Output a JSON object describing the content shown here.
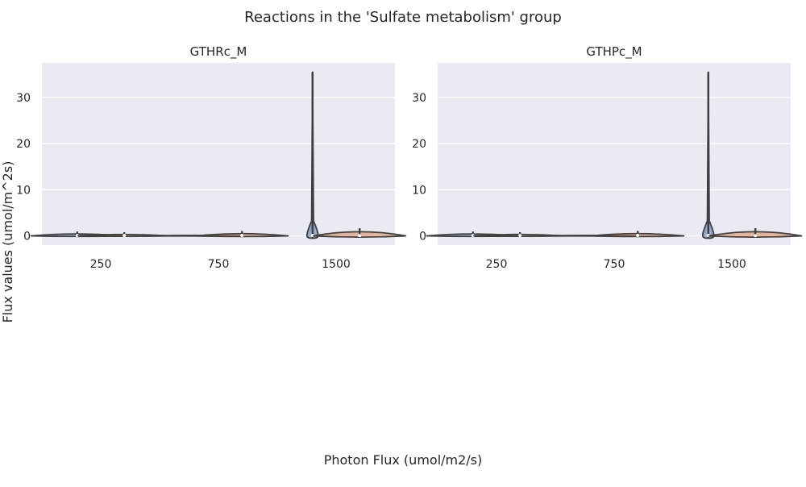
{
  "figure": {
    "title": "Reactions in the 'Sulfate metabolism' group",
    "xlabel": "Photon Flux (umol/m2/s)",
    "ylabel": "Flux values (umol/m^2s)"
  },
  "colors": {
    "panel_bg": "#eaeaf2",
    "grid": "#ffffff",
    "violin_stroke": "#404040",
    "violin_fill_a": "#4c72b0",
    "violin_fill_b": "#dd8452",
    "median_dot": "#ffffff"
  },
  "chart_data": [
    {
      "type": "violin",
      "title": "GTHRc_M",
      "categories": [
        "250",
        "750",
        "1500"
      ],
      "ylim": [
        -2,
        37.5
      ],
      "yticks": [
        0,
        10,
        20,
        30
      ],
      "grid": true,
      "groups": [
        {
          "category": "250",
          "violins": [
            {
              "min": 0,
              "max": 0.6,
              "median": 0.05,
              "q1": 0,
              "q3": 0.15
            },
            {
              "min": 0,
              "max": 0.45,
              "median": 0.08,
              "q1": 0,
              "q3": 0.2
            }
          ]
        },
        {
          "category": "750",
          "violins": [
            {
              "min": 0,
              "max": 0.05,
              "median": 0,
              "q1": 0,
              "q3": 0
            },
            {
              "min": 0,
              "max": 0.7,
              "median": 0.1,
              "q1": 0,
              "q3": 0.3
            }
          ]
        },
        {
          "category": "1500",
          "violins": [
            {
              "min": -0.5,
              "max": 35.5,
              "median": 0.1,
              "q1": 0,
              "q3": 0.4
            },
            {
              "min": 0,
              "max": 1.3,
              "median": 0.05,
              "q1": 0,
              "q3": 0.2
            }
          ]
        }
      ]
    },
    {
      "type": "violin",
      "title": "GTHPc_M",
      "categories": [
        "250",
        "750",
        "1500"
      ],
      "ylim": [
        -2,
        37.5
      ],
      "yticks": [
        0,
        10,
        20,
        30
      ],
      "grid": true,
      "groups": [
        {
          "category": "250",
          "violins": [
            {
              "min": 0,
              "max": 0.6,
              "median": 0.05,
              "q1": 0,
              "q3": 0.15
            },
            {
              "min": 0,
              "max": 0.45,
              "median": 0.08,
              "q1": 0,
              "q3": 0.2
            }
          ]
        },
        {
          "category": "750",
          "violins": [
            {
              "min": 0,
              "max": 0.05,
              "median": 0,
              "q1": 0,
              "q3": 0
            },
            {
              "min": 0,
              "max": 0.7,
              "median": 0.1,
              "q1": 0,
              "q3": 0.3
            }
          ]
        },
        {
          "category": "1500",
          "violins": [
            {
              "min": -0.5,
              "max": 35.5,
              "median": 0.1,
              "q1": 0,
              "q3": 0.4
            },
            {
              "min": 0,
              "max": 1.3,
              "median": 0.05,
              "q1": 0,
              "q3": 0.2
            }
          ]
        }
      ]
    }
  ]
}
